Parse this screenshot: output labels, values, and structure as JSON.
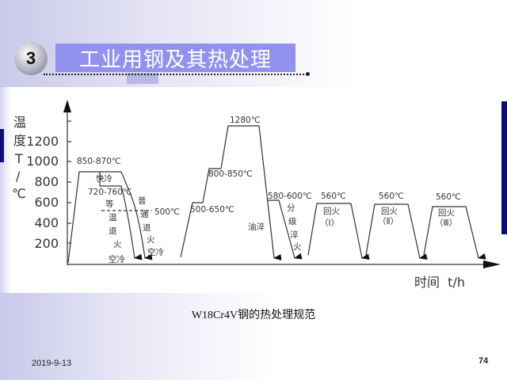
{
  "header": {
    "section_number": "3",
    "title": "工业用钢及其热处理"
  },
  "diagram": {
    "y_axis_label": [
      "温",
      "度",
      "T",
      "/",
      "℃"
    ],
    "y_ticks": [
      "1200",
      "1000",
      "800",
      "600",
      "400",
      "200"
    ],
    "x_axis_label": "时间  t/h",
    "annealing": {
      "temp_label": "850-870℃",
      "fast_cool": "快冷",
      "iso_temp": "720-760℃",
      "iso_label": [
        "等",
        "温",
        "退",
        "火"
      ],
      "air_cool_1": "空冷",
      "normal_label": [
        "普",
        "通",
        "退",
        "火"
      ],
      "air_cool_2": "空冷",
      "dash_temp": "500℃"
    },
    "quench": {
      "preheat1": "500-650℃",
      "preheat2": "800-850℃",
      "austenitize": "1280℃",
      "oil_quench": "油淬",
      "step_temp": "580-600℃",
      "step_label": [
        "分",
        "级",
        "淬",
        "火"
      ]
    },
    "tempering": [
      {
        "temp": "560℃",
        "label": "回火",
        "index": "（Ⅰ）"
      },
      {
        "temp": "560℃",
        "label": "回火",
        "index": "（Ⅱ）"
      },
      {
        "temp": "560℃",
        "label": "回火",
        "index": "（Ⅲ）"
      }
    ]
  },
  "caption": "W18Cr4V钢的热处理规范",
  "footer": {
    "date": "2019-9-13",
    "page": "74"
  }
}
